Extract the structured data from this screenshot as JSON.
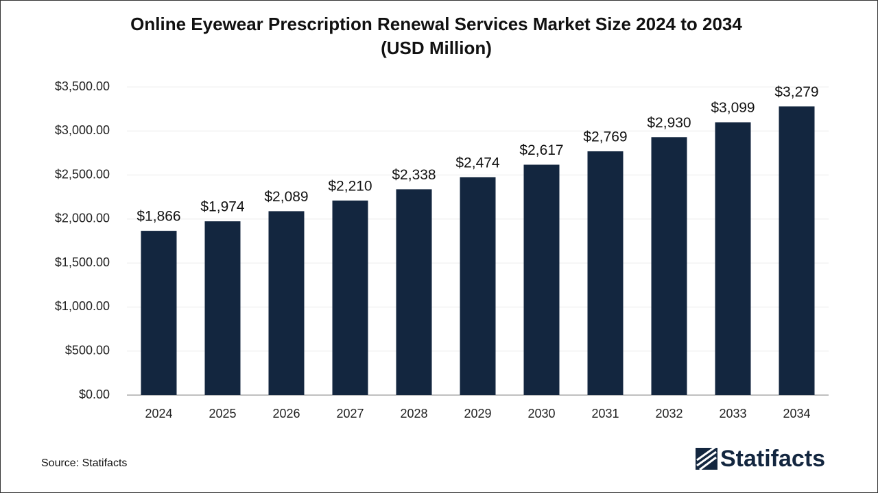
{
  "chart_data": {
    "type": "bar",
    "title": "Online Eyewear Prescription Renewal Services Market Size 2024 to 2034",
    "subtitle": "(USD Million)",
    "categories": [
      "2024",
      "2025",
      "2026",
      "2027",
      "2028",
      "2029",
      "2030",
      "2031",
      "2032",
      "2033",
      "2034"
    ],
    "values": [
      1866,
      1974,
      2089,
      2210,
      2338,
      2474,
      2617,
      2769,
      2930,
      3099,
      3279
    ],
    "value_labels": [
      "$1,866",
      "$1,974",
      "$2,089",
      "$2,210",
      "$2,338",
      "$2,474",
      "$2,617",
      "$2,769",
      "$2,930",
      "$3,099",
      "$3,279"
    ],
    "color": "#13263f",
    "ylim": [
      0,
      3500
    ],
    "yticks": [
      {
        "value": 0,
        "label": "$0.00"
      },
      {
        "value": 500,
        "label": "$500.00"
      },
      {
        "value": 1000,
        "label": "$1,000.00"
      },
      {
        "value": 1500,
        "label": "$1,500.00"
      },
      {
        "value": 2000,
        "label": "$2,000.00"
      },
      {
        "value": 2500,
        "label": "$2,500.00"
      },
      {
        "value": 3000,
        "label": "$3,000.00"
      },
      {
        "value": 3500,
        "label": "$3,500.00"
      }
    ],
    "grid": true,
    "source": "Source: Statifacts",
    "logo": "Statifacts"
  }
}
